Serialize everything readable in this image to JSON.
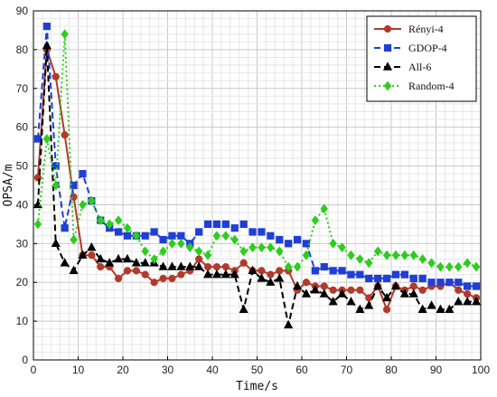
{
  "chart_data": {
    "type": "line",
    "title": "",
    "xlabel": "Time/s",
    "ylabel": "OPSA/m",
    "xlim": [
      0,
      100
    ],
    "ylim": [
      0,
      90
    ],
    "x_ticks": [
      0,
      10,
      20,
      30,
      40,
      50,
      60,
      70,
      80,
      90,
      100
    ],
    "y_ticks": [
      0,
      10,
      20,
      30,
      40,
      50,
      60,
      70,
      80,
      90
    ],
    "grid": true,
    "legend_position": "top-right",
    "series": [
      {
        "name": "Rényi-4",
        "color": "#b23a2a",
        "marker": "circle",
        "dash": "solid",
        "x": [
          1,
          3,
          5,
          7,
          9,
          11,
          13,
          15,
          17,
          19,
          21,
          23,
          25,
          27,
          29,
          31,
          33,
          35,
          37,
          39,
          41,
          43,
          45,
          47,
          49,
          51,
          53,
          55,
          57,
          59,
          61,
          63,
          65,
          67,
          69,
          71,
          73,
          75,
          77,
          79,
          81,
          83,
          85,
          87,
          89,
          91,
          93,
          95,
          97,
          99
        ],
        "y": [
          47,
          80,
          73,
          58,
          42,
          27,
          27,
          24,
          24,
          21,
          23,
          23,
          22,
          20,
          21,
          21,
          22,
          23,
          26,
          24,
          24,
          24,
          23,
          25,
          23,
          23,
          22,
          23,
          23,
          18,
          20,
          19,
          19,
          18,
          18,
          18,
          18,
          16,
          19,
          13,
          19,
          18,
          19,
          18,
          19,
          19,
          20,
          18,
          17,
          16
        ]
      },
      {
        "name": "GDOP-4",
        "color": "#1f3fd6",
        "marker": "square",
        "dash": "dashed",
        "x": [
          1,
          3,
          5,
          7,
          9,
          11,
          13,
          15,
          17,
          19,
          21,
          23,
          25,
          27,
          29,
          31,
          33,
          35,
          37,
          39,
          41,
          43,
          45,
          47,
          49,
          51,
          53,
          55,
          57,
          59,
          61,
          63,
          65,
          67,
          69,
          71,
          73,
          75,
          77,
          79,
          81,
          83,
          85,
          87,
          89,
          91,
          93,
          95,
          97,
          99
        ],
        "y": [
          57,
          86,
          50,
          34,
          45,
          48,
          41,
          36,
          34,
          33,
          32,
          32,
          32,
          33,
          31,
          32,
          32,
          30,
          33,
          35,
          35,
          35,
          34,
          35,
          33,
          33,
          32,
          31,
          30,
          31,
          30,
          23,
          24,
          23,
          23,
          22,
          22,
          21,
          21,
          21,
          22,
          22,
          21,
          21,
          20,
          20,
          20,
          20,
          19,
          19
        ]
      },
      {
        "name": "All-6",
        "color": "#000000",
        "marker": "triangle",
        "dash": "dashed",
        "x": [
          1,
          3,
          5,
          7,
          9,
          11,
          13,
          15,
          17,
          19,
          21,
          23,
          25,
          27,
          29,
          31,
          33,
          35,
          37,
          39,
          41,
          43,
          45,
          47,
          49,
          51,
          53,
          55,
          57,
          59,
          61,
          63,
          65,
          67,
          69,
          71,
          73,
          75,
          77,
          79,
          81,
          83,
          85,
          87,
          89,
          91,
          93,
          95,
          97,
          99
        ],
        "y": [
          40,
          81,
          30,
          25,
          23,
          27,
          29,
          26,
          25,
          26,
          26,
          25,
          25,
          25,
          24,
          24,
          24,
          24,
          24,
          22,
          22,
          22,
          22,
          13,
          23,
          21,
          20,
          21,
          9,
          19,
          17,
          18,
          17,
          15,
          17,
          15,
          13,
          14,
          19,
          16,
          19,
          17,
          17,
          13,
          14,
          13,
          13,
          15,
          15,
          15
        ]
      },
      {
        "name": "Random-4",
        "color": "#2ecc1f",
        "marker": "diamond",
        "dash": "dotted",
        "x": [
          1,
          3,
          5,
          7,
          9,
          11,
          13,
          15,
          17,
          19,
          21,
          23,
          25,
          27,
          29,
          31,
          33,
          35,
          37,
          39,
          41,
          43,
          45,
          47,
          49,
          51,
          53,
          55,
          57,
          59,
          61,
          63,
          65,
          67,
          69,
          71,
          73,
          75,
          77,
          79,
          81,
          83,
          85,
          87,
          89,
          91,
          93,
          95,
          97,
          99
        ],
        "y": [
          35,
          57,
          45,
          84,
          31,
          40,
          41,
          36,
          35,
          36,
          34,
          32,
          28,
          26,
          28,
          30,
          30,
          29,
          28,
          27,
          32,
          32,
          31,
          28,
          29,
          29,
          29,
          28,
          24,
          24,
          27,
          36,
          39,
          30,
          29,
          27,
          26,
          25,
          28,
          27,
          27,
          27,
          27,
          26,
          25,
          24,
          24,
          24,
          25,
          24
        ]
      }
    ]
  }
}
